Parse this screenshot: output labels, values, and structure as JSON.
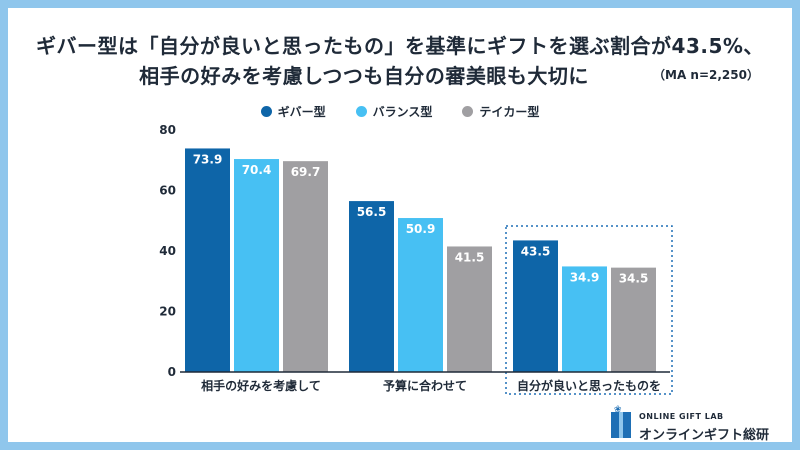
{
  "title_line1": "ギバー型は「自分が良いと思ったもの」を基準にギフトを選ぶ割合が43.5%、",
  "title_line2": "相手の好みを考慮しつつも自分の審美眼も大切に",
  "sample_note": "（MA n=2,250）",
  "logo": {
    "en": "ONLINE GIFT LAB",
    "ja": "オンラインギフト総研"
  },
  "colors": {
    "giver": "#0e65a8",
    "balance": "#47c0f3",
    "taker": "#a09fa2",
    "highlight_border": "#1e6fb5"
  },
  "chart_data": {
    "type": "bar",
    "categories": [
      "相手の好みを考慮して",
      "予算に合わせて",
      "自分が良いと思ったものを"
    ],
    "series": [
      {
        "name": "ギバー型",
        "values": [
          73.9,
          56.5,
          43.5
        ]
      },
      {
        "name": "バランス型",
        "values": [
          70.4,
          50.9,
          34.9
        ]
      },
      {
        "name": "テイカー型",
        "values": [
          69.7,
          41.5,
          34.5
        ]
      }
    ],
    "ylim": [
      0,
      80
    ],
    "yticks": [
      0,
      20,
      40,
      60,
      80
    ],
    "grid": false,
    "legend_position": "top",
    "highlighted_category": "自分が良いと思ったものを"
  }
}
